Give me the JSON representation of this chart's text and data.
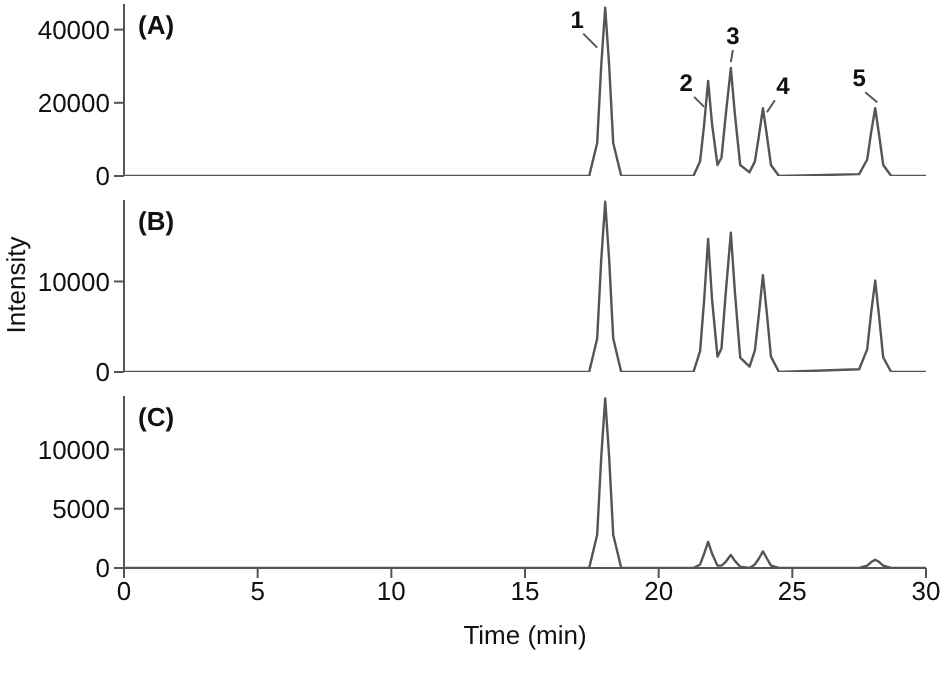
{
  "chart_data": [
    {
      "type": "line",
      "title": "(A)",
      "x": [
        0,
        17.4,
        17.7,
        17.85,
        18.0,
        18.15,
        18.3,
        18.6,
        21.3,
        21.55,
        21.7,
        21.85,
        22.0,
        22.2,
        22.35,
        22.5,
        22.7,
        22.85,
        23.05,
        23.4,
        23.6,
        23.75,
        23.9,
        24.05,
        24.2,
        24.5,
        27.5,
        27.8,
        27.95,
        28.1,
        28.25,
        28.4,
        28.7,
        30
      ],
      "series": [
        {
          "color": "#555555",
          "values": [
            0,
            0,
            9000,
            30000,
            46000,
            30000,
            9000,
            0,
            0,
            4000,
            14000,
            26000,
            14000,
            3000,
            5000,
            16000,
            29500,
            17000,
            3000,
            1000,
            4000,
            11000,
            18500,
            11000,
            3000,
            0,
            500,
            4500,
            12000,
            18500,
            11000,
            3000,
            0,
            0
          ]
        }
      ],
      "xlim": [
        0,
        30
      ],
      "ylim": [
        0,
        47000
      ],
      "yticks": [
        0,
        20000,
        40000
      ],
      "tick_labels": "y",
      "grid": false,
      "legend": false,
      "marker": "none",
      "line_style": "solid",
      "annotations": [
        {
          "text": "1",
          "x": 18.0,
          "y": 46000
        },
        {
          "text": "2",
          "x": 21.85,
          "y": 26000
        },
        {
          "text": "3",
          "x": 22.7,
          "y": 29500
        },
        {
          "text": "4",
          "x": 23.9,
          "y": 18500
        },
        {
          "text": "5",
          "x": 28.1,
          "y": 18500
        }
      ]
    },
    {
      "type": "line",
      "title": "(B)",
      "ylabel": "Intensity",
      "x": [
        0,
        17.4,
        17.7,
        17.85,
        18.0,
        18.15,
        18.3,
        18.6,
        21.3,
        21.55,
        21.7,
        21.85,
        22.0,
        22.2,
        22.35,
        22.5,
        22.7,
        22.85,
        23.05,
        23.4,
        23.6,
        23.75,
        23.9,
        24.05,
        24.2,
        24.5,
        27.5,
        27.8,
        27.95,
        28.1,
        28.25,
        28.4,
        28.7,
        30
      ],
      "series": [
        {
          "color": "#555555",
          "values": [
            0,
            0,
            3700,
            12300,
            18800,
            12300,
            3700,
            0,
            0,
            2300,
            7900,
            14700,
            7900,
            1700,
            2600,
            8400,
            15400,
            8900,
            1600,
            600,
            2400,
            6400,
            10700,
            6400,
            1700,
            0,
            300,
            2500,
            6600,
            10100,
            6000,
            1600,
            0,
            0
          ]
        }
      ],
      "xlim": [
        0,
        30
      ],
      "ylim": [
        0,
        19000
      ],
      "yticks": [
        0,
        10000
      ],
      "tick_labels": "y",
      "grid": false,
      "legend": false,
      "marker": "none",
      "line_style": "solid"
    },
    {
      "type": "line",
      "title": "(C)",
      "xlabel": "Time (min)",
      "x": [
        0,
        17.4,
        17.7,
        17.85,
        18.0,
        18.15,
        18.3,
        18.6,
        21.3,
        21.55,
        21.7,
        21.85,
        22.0,
        22.2,
        22.35,
        22.5,
        22.7,
        22.85,
        23.05,
        23.4,
        23.6,
        23.75,
        23.9,
        24.05,
        24.2,
        24.5,
        27.5,
        27.8,
        27.95,
        28.1,
        28.25,
        28.4,
        28.7,
        30
      ],
      "series": [
        {
          "color": "#555555",
          "values": [
            0,
            0,
            2800,
            9300,
            14300,
            9300,
            2800,
            0,
            0,
            300,
            1200,
            2200,
            1200,
            200,
            200,
            500,
            1100,
            600,
            100,
            0,
            300,
            800,
            1400,
            800,
            200,
            0,
            0,
            200,
            500,
            700,
            500,
            200,
            0,
            0
          ]
        }
      ],
      "xlim": [
        0,
        30
      ],
      "xticks": [
        0,
        5,
        10,
        15,
        20,
        25,
        30
      ],
      "ylim": [
        0,
        14500
      ],
      "yticks": [
        0,
        5000,
        10000
      ],
      "grid": false,
      "legend": false,
      "marker": "none",
      "line_style": "solid"
    }
  ]
}
